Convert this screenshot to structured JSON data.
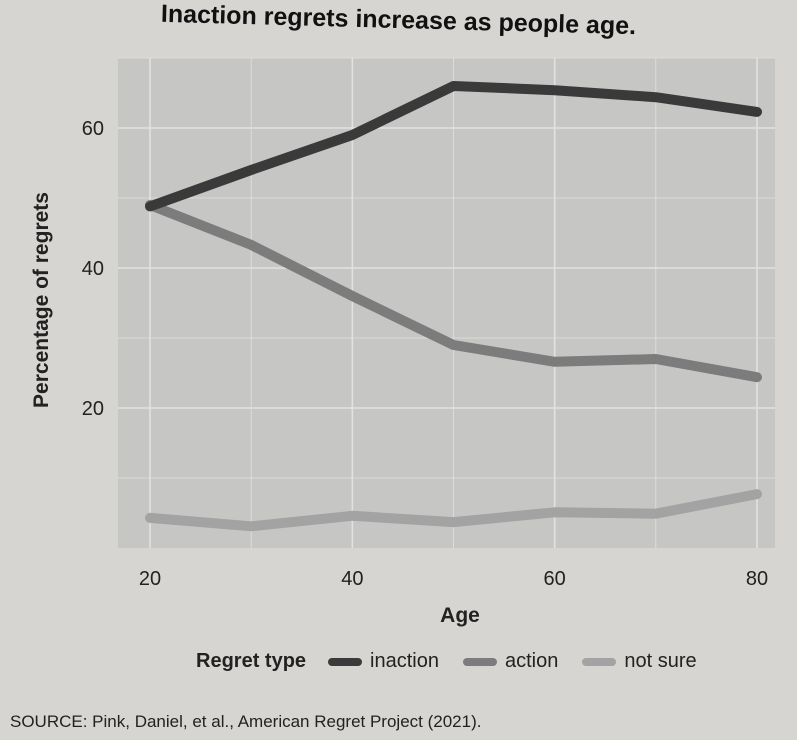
{
  "chart_data": {
    "type": "line",
    "title": "Inaction regrets increase as people age.",
    "xlabel": "Age",
    "ylabel": "Percentage of regrets",
    "xlim": [
      18,
      82
    ],
    "ylim": [
      0,
      70
    ],
    "xticks": [
      20,
      40,
      60,
      80
    ],
    "yticks": [
      20,
      40,
      60
    ],
    "grid": true,
    "legend_title": "Regret type",
    "legend_position": "bottom",
    "x": [
      20,
      30,
      40,
      50,
      60,
      70,
      80
    ],
    "series": [
      {
        "name": "inaction",
        "color": "#3a3a3a",
        "values": [
          48.8,
          54,
          59,
          66,
          65.4,
          64.4,
          62.3
        ]
      },
      {
        "name": "action",
        "color": "#7c7c7c",
        "values": [
          49,
          43.3,
          36,
          29,
          26.6,
          27,
          24.4
        ]
      },
      {
        "name": "not sure",
        "color": "#a3a3a3",
        "values": [
          4.3,
          3.1,
          4.6,
          3.7,
          5.1,
          4.9,
          7.7
        ]
      }
    ],
    "background": "#c6c6c4",
    "source": "SOURCE: Pink, Daniel, et al., American Regret Project (2021)."
  }
}
